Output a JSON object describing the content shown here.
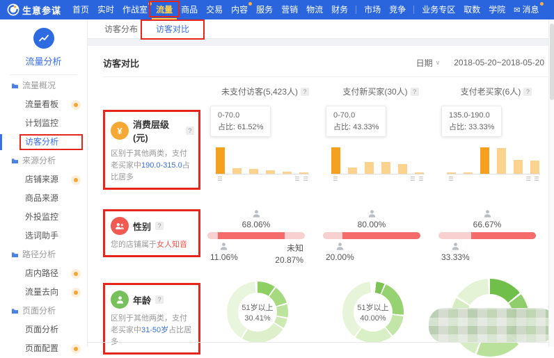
{
  "misc": {
    "help_icon": "?",
    "caret": "∨",
    "yen": "¥",
    "message_icon": "✉"
  },
  "nav": {
    "brand": "生意参谋",
    "items": [
      {
        "label": "首页"
      },
      {
        "label": "实时"
      },
      {
        "label": "作战室",
        "dot": true
      },
      {
        "label": "流量",
        "active": true,
        "annotated": true
      },
      {
        "label": "商品"
      },
      {
        "label": "交易"
      },
      {
        "label": "内容",
        "dot": true
      },
      {
        "label": "服务"
      },
      {
        "label": "营销"
      },
      {
        "label": "物流"
      },
      {
        "label": "财务"
      },
      {
        "label": "市场"
      },
      {
        "label": "竞争"
      },
      {
        "label": "业务专区"
      },
      {
        "label": "取数"
      },
      {
        "label": "学院"
      },
      {
        "label": "消息",
        "dot": true
      }
    ]
  },
  "sidebar": {
    "panel_title": "流量分析",
    "items": [
      {
        "label": "流量概况",
        "type": "group"
      },
      {
        "label": "流量看板",
        "type": "item",
        "dot": true
      },
      {
        "label": "计划监控",
        "type": "item"
      },
      {
        "label": "访客分析",
        "type": "item",
        "selected": true,
        "annotated": true
      },
      {
        "label": "来源分析",
        "type": "group"
      },
      {
        "label": "店铺来源",
        "type": "item",
        "dot": true
      },
      {
        "label": "商品来源",
        "type": "item"
      },
      {
        "label": "外投监控",
        "type": "item"
      },
      {
        "label": "选词助手",
        "type": "item"
      },
      {
        "label": "路径分析",
        "type": "group"
      },
      {
        "label": "店内路径",
        "type": "item",
        "dot": true
      },
      {
        "label": "流量去向",
        "type": "item",
        "dot": true
      },
      {
        "label": "页面分析",
        "type": "group"
      },
      {
        "label": "页面分析",
        "type": "item"
      },
      {
        "label": "页面配置",
        "type": "item",
        "dot": true
      }
    ]
  },
  "tabs": [
    {
      "label": "访客分布"
    },
    {
      "label": "访客对比",
      "active": true,
      "annotated": true
    }
  ],
  "page": {
    "title": "访客对比",
    "date_label": "日期",
    "date_range": "2018-05-20~2018-05-20"
  },
  "columns": [
    {
      "label": "未支付访客(5,423人)"
    },
    {
      "label": "支付新买家(30人)"
    },
    {
      "label": "支付老买家(6人)"
    }
  ],
  "rows": {
    "consume": {
      "title": "消费层级(元)",
      "desc_prefix": "区别于其他两类，支付老买家中",
      "desc_highlight": "190.0-315.0",
      "desc_suffix": "占比居多",
      "charts": [
        {
          "tooltip_range": "0-70.0",
          "tooltip_ratio": "占比: 61.52%",
          "bars": [
            100,
            22,
            18,
            14,
            8,
            5
          ],
          "highlight": 0
        },
        {
          "tooltip_range": "0-70.0",
          "tooltip_ratio": "占比: 43.33%",
          "bars": [
            100,
            24,
            45,
            45,
            38,
            4
          ],
          "highlight": 0
        },
        {
          "tooltip_range": "135.0-190.0",
          "tooltip_ratio": "占比: 33.33%",
          "bars": [
            5,
            5,
            100,
            97,
            53,
            50
          ],
          "highlight": 2
        }
      ]
    },
    "gender": {
      "title": "性别",
      "desc_prefix": "您的店铺属于",
      "desc_highlight": "女人知音",
      "charts": [
        {
          "female_pct": "68.06%",
          "male_pct": "11.06%",
          "unknown_label": "未知",
          "unknown_pct": "20.87%",
          "segs": [
            11.06,
            68.06,
            20.87
          ]
        },
        {
          "female_pct": "80.00%",
          "male_pct": "20.00%",
          "segs": [
            20,
            80
          ]
        },
        {
          "female_pct": "66.67%",
          "male_pct": "33.33%",
          "segs": [
            33.33,
            66.67
          ]
        }
      ]
    },
    "age": {
      "title": "年龄",
      "desc_prefix": "区别于其他两类，支付老买家中",
      "desc_highlight": "31-50岁",
      "desc_suffix": "占比居多",
      "charts": [
        {
          "center_line1": "51岁以上",
          "center_line2": "30.41%"
        },
        {
          "center_line1": "51岁以上",
          "center_line2": "40.00%"
        },
        {
          "censored": true
        }
      ]
    }
  }
}
